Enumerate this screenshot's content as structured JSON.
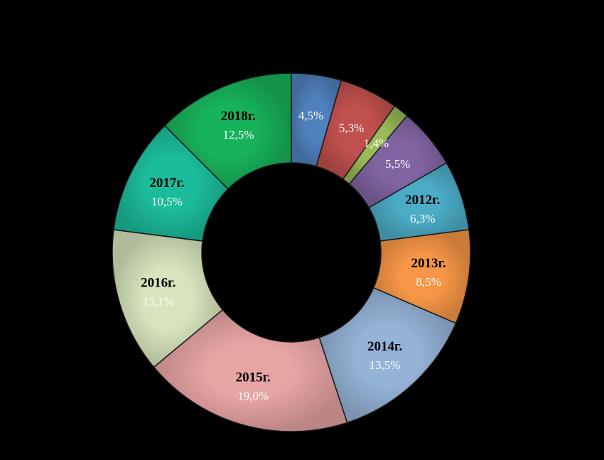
{
  "chart_data": {
    "type": "pie",
    "variant": "donut",
    "title": "",
    "legend": "none",
    "slices": [
      {
        "label": "",
        "value": 4.5,
        "value_text": "4,5%",
        "color": "#4F81BD",
        "text_color": "#FFFFFF"
      },
      {
        "label": "",
        "value": 5.3,
        "value_text": "5,3%",
        "color": "#C0504D",
        "text_color": "#FFFFFF"
      },
      {
        "label": "",
        "value": 1.4,
        "value_text": "1,4%",
        "color": "#9BBB59",
        "text_color": "#FFFFFF"
      },
      {
        "label": "",
        "value": 5.5,
        "value_text": "5,5%",
        "color": "#8064A2",
        "text_color": "#FFFFFF"
      },
      {
        "label": "2012г.",
        "value": 6.3,
        "value_text": "6,3%",
        "color": "#4BACC6",
        "text_color": "#FFFFFF"
      },
      {
        "label": "2013г.",
        "value": 8.5,
        "value_text": "8,5%",
        "color": "#F79646",
        "text_color": "#FFFFFF"
      },
      {
        "label": "2014г.",
        "value": 13.5,
        "value_text": "13,5%",
        "color": "#95B3D7",
        "text_color": "#FFFFFF"
      },
      {
        "label": "2015г.",
        "value": 19.0,
        "value_text": "19,0%",
        "color": "#E6A4A3",
        "text_color": "#FFFFFF"
      },
      {
        "label": "2016г.",
        "value": 13.1,
        "value_text": "13,1%",
        "color": "#D7E4BD",
        "text_color": "#FFFFFF"
      },
      {
        "label": "2017г.",
        "value": 10.5,
        "value_text": "10,5%",
        "color": "#1BBC9B",
        "text_color": "#FFFFFF"
      },
      {
        "label": "2018г.",
        "value": 12.5,
        "value_text": "12,5%",
        "color": "#17B25A",
        "text_color": "#FFFFFF"
      }
    ]
  }
}
